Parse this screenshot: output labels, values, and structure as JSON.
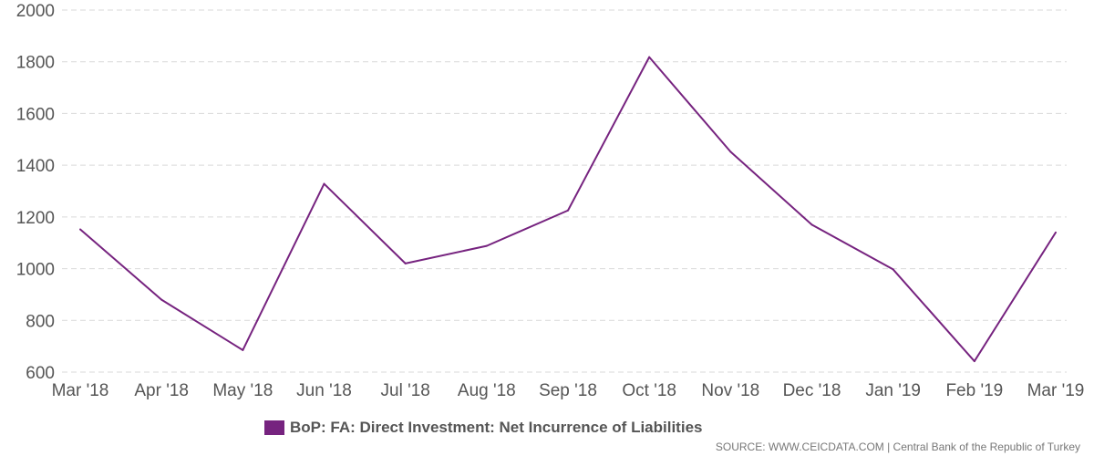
{
  "chart_data": {
    "type": "line",
    "categories": [
      "Mar '18",
      "Apr '18",
      "May '18",
      "Jun '18",
      "Jul '18",
      "Aug '18",
      "Sep '18",
      "Oct '18",
      "Nov '18",
      "Dec '18",
      "Jan '19",
      "Feb '19",
      "Mar '19"
    ],
    "series": [
      {
        "name": "BoP: FA: Direct Investment: Net Incurrence of Liabilities",
        "color": "#76237f",
        "values": [
          1152,
          880,
          685,
          1328,
          1020,
          1088,
          1225,
          1818,
          1452,
          1170,
          997,
          642,
          1140
        ]
      }
    ],
    "yticks": [
      600,
      800,
      1000,
      1200,
      1400,
      1600,
      1800,
      2000
    ],
    "ylim": [
      600,
      2000
    ],
    "grid": true,
    "legend_position": "bottom",
    "source": "SOURCE: WWW.CEICDATA.COM | Central Bank of the Republic of Turkey"
  }
}
